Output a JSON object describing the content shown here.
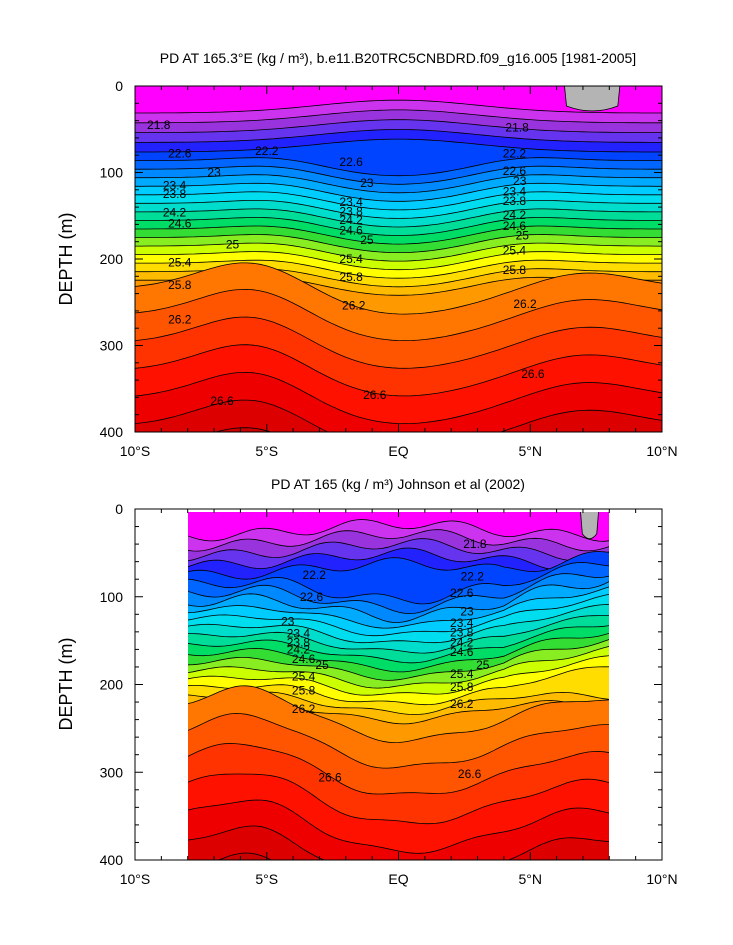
{
  "chart_data": [
    {
      "type": "heatmap",
      "subtype": "filled-contour depth section",
      "title": "PD AT 165.3°E (kg / m³), b.e11.B20TRC5CNBDRD.f09_g16.005 [1981-2005]",
      "ylabel": "DEPTH (m)",
      "xlabel": "",
      "xlim": [
        -10,
        10
      ],
      "ylim": [
        0,
        400
      ],
      "y_reversed": true,
      "x_ticks": [
        -10,
        -5,
        0,
        5,
        10
      ],
      "x_tick_labels": [
        "10°S",
        "5°S",
        "EQ",
        "5°N",
        "10°N"
      ],
      "y_ticks": [
        0,
        100,
        200,
        300,
        400
      ],
      "y_tick_labels": [
        "0",
        "100",
        "200",
        "300",
        "400"
      ],
      "data_x_range": [
        -10,
        10
      ],
      "contour_interval": 0.2,
      "contour_labels": [
        {
          "x": -9.1,
          "depth": 45,
          "text": "21.8"
        },
        {
          "x": 4.5,
          "depth": 48,
          "text": "21.8"
        },
        {
          "x": -5.0,
          "depth": 75,
          "text": "22.2"
        },
        {
          "x": 4.4,
          "depth": 78,
          "text": "22.2"
        },
        {
          "x": -8.3,
          "depth": 78,
          "text": "22.6"
        },
        {
          "x": -1.8,
          "depth": 88,
          "text": "22.6"
        },
        {
          "x": 4.4,
          "depth": 98,
          "text": "22.6"
        },
        {
          "x": -7.0,
          "depth": 100,
          "text": "23"
        },
        {
          "x": 4.6,
          "depth": 110,
          "text": "23"
        },
        {
          "x": -1.2,
          "depth": 112,
          "text": "23"
        },
        {
          "x": -8.5,
          "depth": 115,
          "text": "23.4"
        },
        {
          "x": -1.8,
          "depth": 134,
          "text": "23.4"
        },
        {
          "x": 4.4,
          "depth": 122,
          "text": "23.4"
        },
        {
          "x": -8.5,
          "depth": 125,
          "text": "23.8"
        },
        {
          "x": -1.8,
          "depth": 145,
          "text": "23.8"
        },
        {
          "x": 4.4,
          "depth": 133,
          "text": "23.8"
        },
        {
          "x": -8.5,
          "depth": 146,
          "text": "24.2"
        },
        {
          "x": -1.8,
          "depth": 155,
          "text": "24.2"
        },
        {
          "x": 4.4,
          "depth": 149,
          "text": "24.2"
        },
        {
          "x": -8.3,
          "depth": 159,
          "text": "24.6"
        },
        {
          "x": -1.8,
          "depth": 167,
          "text": "24.6"
        },
        {
          "x": 4.4,
          "depth": 162,
          "text": "24.6"
        },
        {
          "x": -6.3,
          "depth": 183,
          "text": "25"
        },
        {
          "x": -1.2,
          "depth": 178,
          "text": "25"
        },
        {
          "x": 4.7,
          "depth": 173,
          "text": "25"
        },
        {
          "x": -8.3,
          "depth": 204,
          "text": "25.4"
        },
        {
          "x": -1.8,
          "depth": 200,
          "text": "25.4"
        },
        {
          "x": 4.4,
          "depth": 190,
          "text": "25.4"
        },
        {
          "x": -8.3,
          "depth": 230,
          "text": "25.8"
        },
        {
          "x": -1.8,
          "depth": 221,
          "text": "25.8"
        },
        {
          "x": 4.4,
          "depth": 213,
          "text": "25.8"
        },
        {
          "x": -1.7,
          "depth": 254,
          "text": "26.2"
        },
        {
          "x": -8.3,
          "depth": 270,
          "text": "26.2"
        },
        {
          "x": 4.8,
          "depth": 252,
          "text": "26.2"
        },
        {
          "x": -6.7,
          "depth": 364,
          "text": "26.6"
        },
        {
          "x": -0.9,
          "depth": 357,
          "text": "26.6"
        },
        {
          "x": 5.1,
          "depth": 333,
          "text": "26.6"
        }
      ],
      "missing_regions": [
        {
          "x_range": [
            6.3,
            8.4
          ],
          "depth_range": [
            0,
            30
          ],
          "color": "#b4b4b4"
        }
      ]
    },
    {
      "type": "heatmap",
      "subtype": "filled-contour depth section",
      "title": "PD AT 165 (kg / m³) Johnson et al (2002)",
      "ylabel": "DEPTH (m)",
      "xlabel": "",
      "xlim": [
        -10,
        10
      ],
      "ylim": [
        0,
        400
      ],
      "y_reversed": true,
      "x_ticks": [
        -10,
        -5,
        0,
        5,
        10
      ],
      "x_tick_labels": [
        "10°S",
        "5°S",
        "EQ",
        "5°N",
        "10°N"
      ],
      "y_ticks": [
        0,
        100,
        200,
        300,
        400
      ],
      "y_tick_labels": [
        "0",
        "100",
        "200",
        "300",
        "400"
      ],
      "data_x_range": [
        -8,
        8
      ],
      "contour_interval": 0.2,
      "contour_labels": [
        {
          "x": 2.9,
          "depth": 40,
          "text": "21.8"
        },
        {
          "x": -3.2,
          "depth": 75,
          "text": "22.2"
        },
        {
          "x": 2.8,
          "depth": 77,
          "text": "22.2"
        },
        {
          "x": -3.3,
          "depth": 100,
          "text": "22.6"
        },
        {
          "x": 2.4,
          "depth": 96,
          "text": "22.6"
        },
        {
          "x": -4.2,
          "depth": 128,
          "text": "23"
        },
        {
          "x": 2.6,
          "depth": 117,
          "text": "23"
        },
        {
          "x": -3.8,
          "depth": 142,
          "text": "23.4"
        },
        {
          "x": 2.4,
          "depth": 130,
          "text": "23.4"
        },
        {
          "x": -3.8,
          "depth": 152,
          "text": "23.8"
        },
        {
          "x": 2.4,
          "depth": 141,
          "text": "23.8"
        },
        {
          "x": -3.8,
          "depth": 160,
          "text": "24.2"
        },
        {
          "x": 2.4,
          "depth": 152,
          "text": "24.2"
        },
        {
          "x": -3.6,
          "depth": 171,
          "text": "24.6"
        },
        {
          "x": 2.4,
          "depth": 163,
          "text": "24.6"
        },
        {
          "x": -2.9,
          "depth": 178,
          "text": "25"
        },
        {
          "x": 3.2,
          "depth": 178,
          "text": "25"
        },
        {
          "x": -3.6,
          "depth": 191,
          "text": "25.4"
        },
        {
          "x": 2.4,
          "depth": 188,
          "text": "25.4"
        },
        {
          "x": -3.6,
          "depth": 207,
          "text": "25.8"
        },
        {
          "x": 2.4,
          "depth": 203,
          "text": "25.8"
        },
        {
          "x": -3.6,
          "depth": 228,
          "text": "26.2"
        },
        {
          "x": 2.4,
          "depth": 222,
          "text": "26.2"
        },
        {
          "x": -2.6,
          "depth": 306,
          "text": "26.6"
        },
        {
          "x": 2.7,
          "depth": 302,
          "text": "26.6"
        }
      ],
      "missing_regions": [
        {
          "x_range": [
            6.9,
            7.6
          ],
          "depth_range": [
            0,
            35
          ],
          "color": "#b4b4b4"
        }
      ]
    }
  ],
  "colors": {
    "contour_fill_ramp": [
      "#ff00ff",
      "#cc33ee",
      "#9933dd",
      "#6633ee",
      "#2222ff",
      "#0044ff",
      "#0066ff",
      "#0088ff",
      "#00aaff",
      "#00ccff",
      "#00ddee",
      "#00ddcc",
      "#00dd99",
      "#00dd66",
      "#33dd33",
      "#88ee22",
      "#ccff00",
      "#ffff00",
      "#ffdd00",
      "#ffbb00",
      "#ff9900",
      "#ff7700",
      "#ff5500",
      "#ff3300",
      "#ff1100",
      "#ee0000",
      "#dd0000",
      "#cc0000"
    ],
    "missing": "#b4b4b4",
    "contour_line": "#000000"
  }
}
